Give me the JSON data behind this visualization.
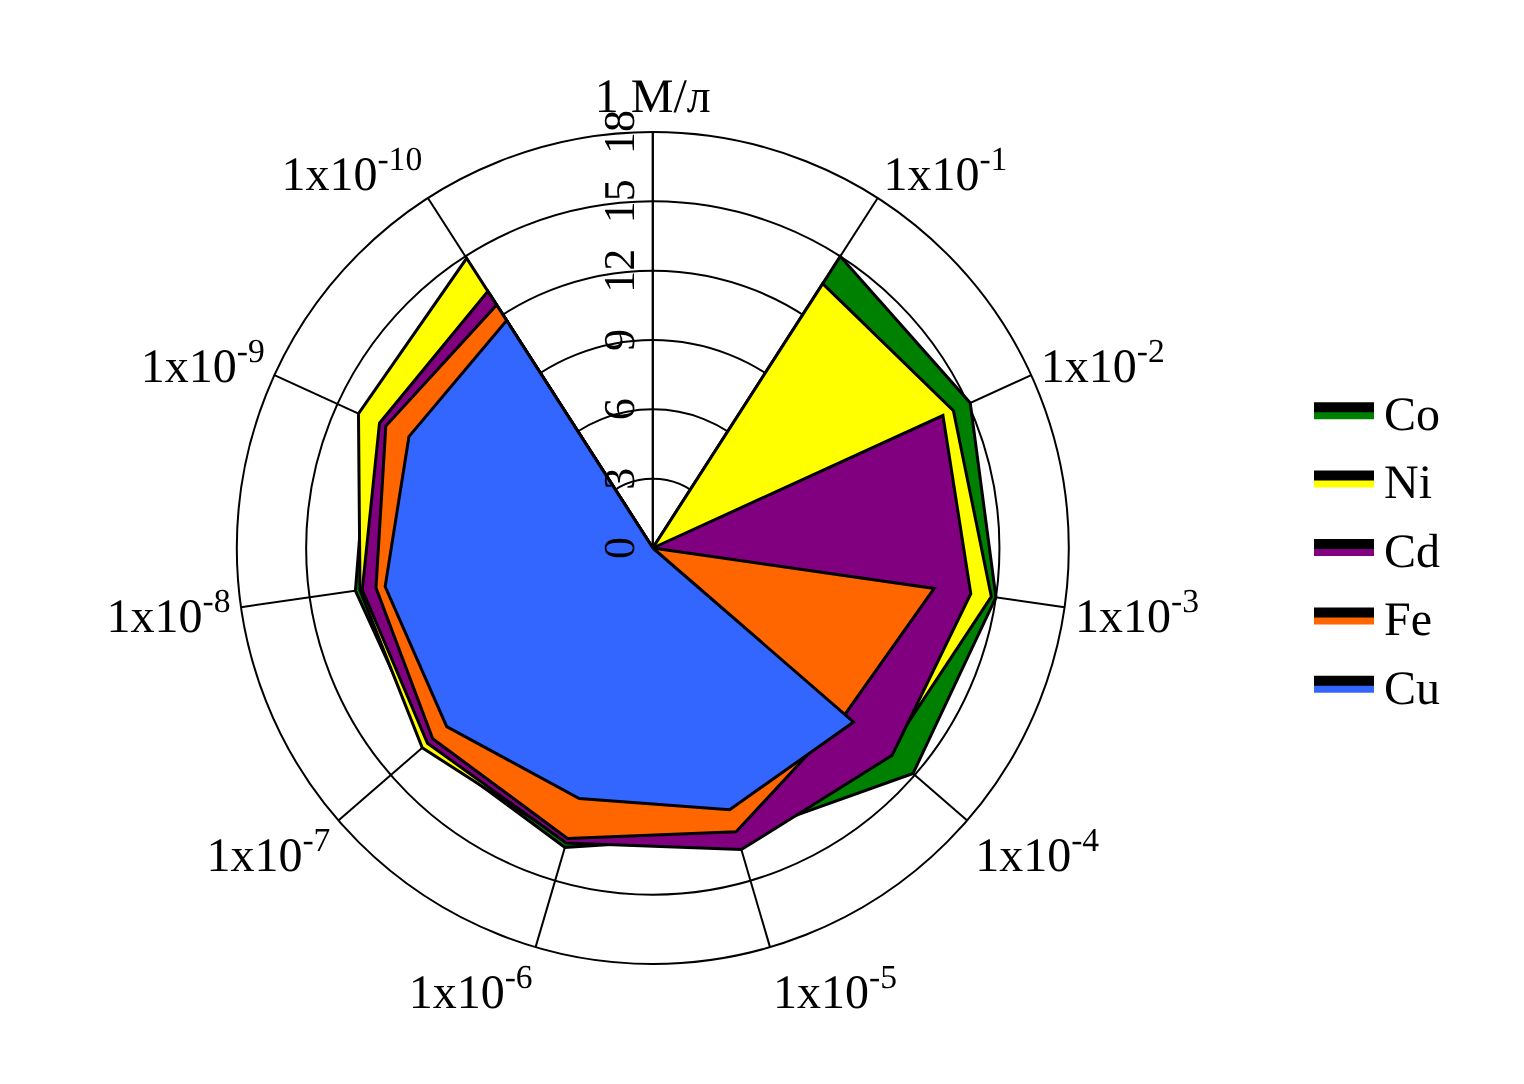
{
  "chart_data": {
    "type": "radar",
    "categories": [
      "1 М/л",
      "1x10$^{-1}$",
      "1x10$^{-2}$",
      "1x10$^{-3}$",
      "1x10$^{-4}$",
      "1x10$^{-5}$",
      "1x10$^{-6}$",
      "1x10$^{-7}$",
      "1x10$^{-8}$",
      "1x10$^{-9}$",
      "1x10$^{-10}$"
    ],
    "series": [
      {
        "name": "Co",
        "color": "#008000",
        "values": [
          0,
          15.0,
          15.1,
          15.0,
          14.9,
          13.0,
          13.5,
          13.0,
          13.0,
          13.5,
          13.0
        ]
      },
      {
        "name": "Ni",
        "color": "#ffff00",
        "values": [
          0,
          13.6,
          14.3,
          14.8,
          13.5,
          12.5,
          13.2,
          13.2,
          12.8,
          14.0,
          14.9
        ]
      },
      {
        "name": "Cd",
        "color": "#800080",
        "values": [
          0,
          0,
          13.8,
          13.9,
          13.7,
          13.6,
          13.3,
          12.9,
          12.7,
          13.0,
          13.2
        ]
      },
      {
        "name": "Fe",
        "color": "#ff6600",
        "values": [
          0,
          0,
          0,
          12.3,
          11.0,
          12.8,
          13.1,
          12.6,
          12.1,
          12.7,
          12.5
        ]
      },
      {
        "name": "Cu",
        "color": "#3366ff",
        "values": [
          0,
          0,
          0,
          0,
          11.5,
          11.8,
          11.3,
          11.8,
          11.7,
          11.6,
          11.7
        ]
      }
    ],
    "ylim": [
      0,
      18
    ],
    "yticks": [
      0,
      3,
      6,
      9,
      12,
      15,
      18
    ],
    "grid": true,
    "legend": "right",
    "marker": "none",
    "line_style": "solid"
  }
}
